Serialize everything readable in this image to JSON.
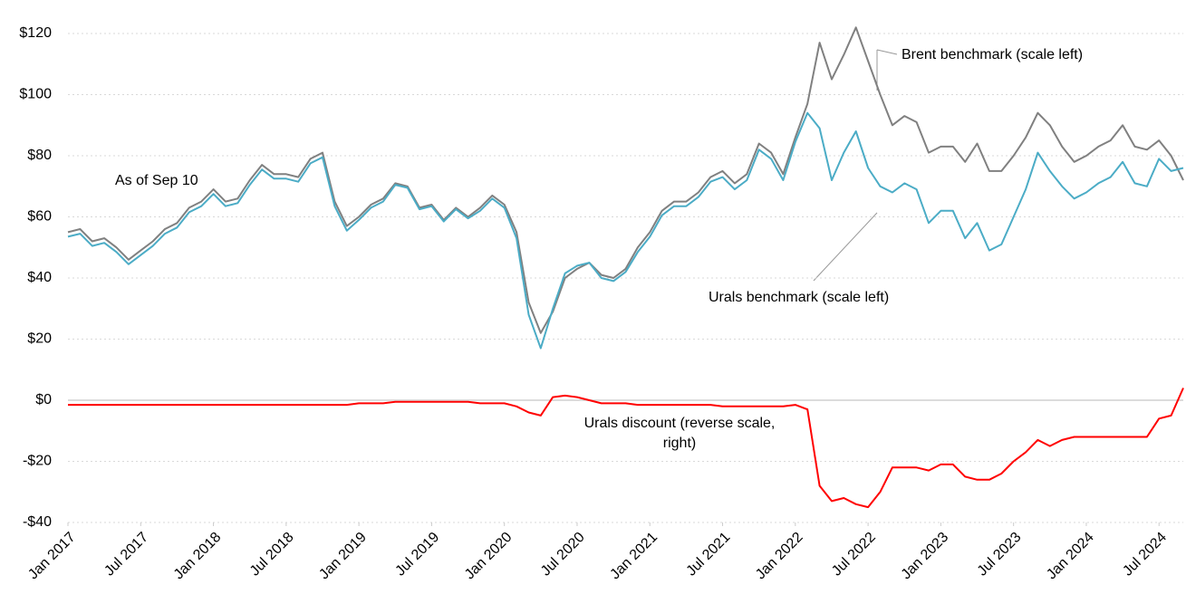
{
  "chart_data": {
    "type": "line",
    "x": [
      "2017-01",
      "2017-02",
      "2017-03",
      "2017-04",
      "2017-05",
      "2017-06",
      "2017-07",
      "2017-08",
      "2017-09",
      "2017-10",
      "2017-11",
      "2017-12",
      "2018-01",
      "2018-02",
      "2018-03",
      "2018-04",
      "2018-05",
      "2018-06",
      "2018-07",
      "2018-08",
      "2018-09",
      "2018-10",
      "2018-11",
      "2018-12",
      "2019-01",
      "2019-02",
      "2019-03",
      "2019-04",
      "2019-05",
      "2019-06",
      "2019-07",
      "2019-08",
      "2019-09",
      "2019-10",
      "2019-11",
      "2019-12",
      "2020-01",
      "2020-02",
      "2020-03",
      "2020-04",
      "2020-05",
      "2020-06",
      "2020-07",
      "2020-08",
      "2020-09",
      "2020-10",
      "2020-11",
      "2020-12",
      "2021-01",
      "2021-02",
      "2021-03",
      "2021-04",
      "2021-05",
      "2021-06",
      "2021-07",
      "2021-08",
      "2021-09",
      "2021-10",
      "2021-11",
      "2021-12",
      "2022-01",
      "2022-02",
      "2022-03",
      "2022-04",
      "2022-05",
      "2022-06",
      "2022-07",
      "2022-08",
      "2022-09",
      "2022-10",
      "2022-11",
      "2022-12",
      "2023-01",
      "2023-02",
      "2023-03",
      "2023-04",
      "2023-05",
      "2023-06",
      "2023-07",
      "2023-08",
      "2023-09",
      "2023-10",
      "2023-11",
      "2023-12",
      "2024-01",
      "2024-02",
      "2024-03",
      "2024-04",
      "2024-05",
      "2024-06",
      "2024-07",
      "2024-08",
      "2024-09"
    ],
    "series": [
      {
        "name": "Brent benchmark (scale left)",
        "color": "#808080",
        "values": [
          55,
          56,
          52,
          53,
          50,
          46,
          49,
          52,
          56,
          58,
          63,
          65,
          69,
          65,
          66,
          72,
          77,
          74,
          74,
          73,
          79,
          81,
          65,
          57,
          60,
          64,
          66,
          71,
          70,
          63,
          64,
          59,
          63,
          60,
          63,
          67,
          64,
          55,
          32,
          22,
          29,
          40,
          43,
          45,
          41,
          40,
          43,
          50,
          55,
          62,
          65,
          65,
          68,
          73,
          75,
          71,
          74,
          84,
          81,
          74,
          86,
          97,
          117,
          105,
          113,
          122,
          111,
          100,
          90,
          93,
          91,
          81,
          83,
          83,
          78,
          84,
          75,
          75,
          80,
          86,
          94,
          90,
          83,
          78,
          80,
          83,
          85,
          90,
          83,
          82,
          85,
          80,
          72
        ]
      },
      {
        "name": "Urals benchmark (scale left)",
        "color": "#4bacc6",
        "values": [
          53.5,
          54.5,
          50.5,
          51.5,
          48.5,
          44.5,
          47.5,
          50.5,
          54.5,
          56.5,
          61.5,
          63.5,
          67.5,
          63.5,
          64.5,
          70.5,
          75.5,
          72.5,
          72.5,
          71.5,
          77.5,
          79.5,
          63.5,
          55.5,
          59,
          63,
          65,
          70.5,
          69.5,
          62.5,
          63.5,
          58.5,
          62.5,
          59.5,
          62,
          66,
          63,
          53,
          28,
          17,
          30,
          41.5,
          44,
          45,
          40,
          39,
          42,
          48.5,
          53.5,
          60.5,
          63.5,
          63.5,
          66.5,
          71.5,
          73,
          69,
          72,
          82,
          79,
          72,
          84.5,
          94,
          89,
          72,
          81,
          88,
          76,
          70,
          68,
          71,
          69,
          58,
          62,
          62,
          53,
          58,
          49,
          51,
          60,
          69,
          81,
          75,
          70,
          66,
          68,
          71,
          73,
          78,
          71,
          70,
          79,
          75,
          76
        ]
      },
      {
        "name": "Urals discount (reverse scale, right)",
        "color": "#ff0000",
        "values": [
          -1.5,
          -1.5,
          -1.5,
          -1.5,
          -1.5,
          -1.5,
          -1.5,
          -1.5,
          -1.5,
          -1.5,
          -1.5,
          -1.5,
          -1.5,
          -1.5,
          -1.5,
          -1.5,
          -1.5,
          -1.5,
          -1.5,
          -1.5,
          -1.5,
          -1.5,
          -1.5,
          -1.5,
          -1,
          -1,
          -1,
          -0.5,
          -0.5,
          -0.5,
          -0.5,
          -0.5,
          -0.5,
          -0.5,
          -1,
          -1,
          -1,
          -2,
          -4,
          -5,
          1,
          1.5,
          1,
          0,
          -1,
          -1,
          -1,
          -1.5,
          -1.5,
          -1.5,
          -1.5,
          -1.5,
          -1.5,
          -1.5,
          -2,
          -2,
          -2,
          -2,
          -2,
          -2,
          -1.5,
          -3,
          -28,
          -33,
          -32,
          -34,
          -35,
          -30,
          -22,
          -22,
          -22,
          -23,
          -21,
          -21,
          -25,
          -26,
          -26,
          -24,
          -20,
          -17,
          -13,
          -15,
          -13,
          -12,
          -12,
          -12,
          -12,
          -12,
          -12,
          -12,
          -6,
          -5,
          4
        ]
      }
    ],
    "annotations": [
      "As of Sep 10"
    ],
    "xlim": [
      "2017-01",
      "2024-09"
    ],
    "xticks": [
      {
        "value": "2017-01",
        "label": "Jan 2017"
      },
      {
        "value": "2017-07",
        "label": "Jul 2017"
      },
      {
        "value": "2018-01",
        "label": "Jan 2018"
      },
      {
        "value": "2018-07",
        "label": "Jul 2018"
      },
      {
        "value": "2019-01",
        "label": "Jan 2019"
      },
      {
        "value": "2019-07",
        "label": "Jul 2019"
      },
      {
        "value": "2020-01",
        "label": "Jan 2020"
      },
      {
        "value": "2020-07",
        "label": "Jul 2020"
      },
      {
        "value": "2021-01",
        "label": "Jan 2021"
      },
      {
        "value": "2021-07",
        "label": "Jul 2021"
      },
      {
        "value": "2022-01",
        "label": "Jan 2022"
      },
      {
        "value": "2022-07",
        "label": "Jul 2022"
      },
      {
        "value": "2023-01",
        "label": "Jan 2023"
      },
      {
        "value": "2023-07",
        "label": "Jul 2023"
      },
      {
        "value": "2024-01",
        "label": "Jan 2024"
      },
      {
        "value": "2024-07",
        "label": "Jul 2024"
      }
    ],
    "ylim": [
      -40,
      128
    ],
    "yticks": [
      {
        "value": 120,
        "label": "$120"
      },
      {
        "value": 100,
        "label": "$100"
      },
      {
        "value": 80,
        "label": "$80"
      },
      {
        "value": 60,
        "label": "$60"
      },
      {
        "value": 40,
        "label": "$40"
      },
      {
        "value": 20,
        "label": "$20"
      },
      {
        "value": 0,
        "label": "$0"
      },
      {
        "value": -20,
        "label": "-$20"
      },
      {
        "value": -40,
        "label": "-$40"
      }
    ],
    "grid": true
  }
}
